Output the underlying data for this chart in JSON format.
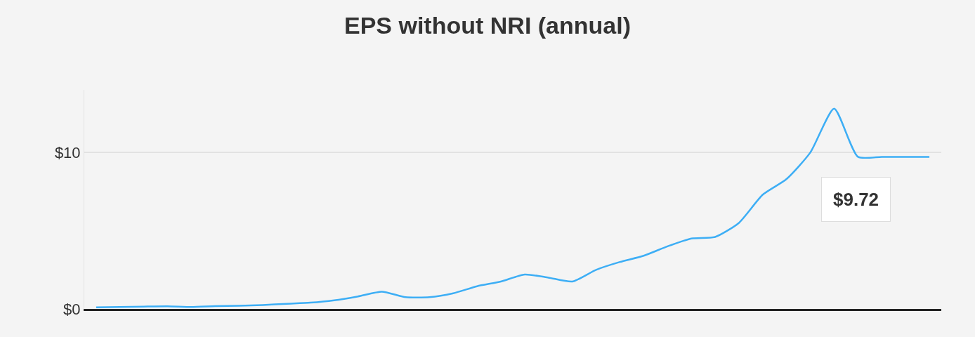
{
  "chart_data": {
    "type": "line",
    "title": "EPS without NRI (annual)",
    "categories": [
      null,
      null,
      null,
      null,
      null,
      null,
      null,
      null,
      null,
      null,
      null,
      null,
      null,
      null,
      null,
      null,
      null,
      null,
      null,
      null,
      null,
      null,
      null,
      null,
      null,
      null,
      null,
      null,
      null,
      null,
      null,
      null,
      null,
      null,
      null,
      null
    ],
    "series": [
      {
        "color": "#3daef5",
        "values": [
          0.1,
          0.12,
          0.15,
          0.17,
          0.12,
          0.18,
          0.2,
          0.25,
          0.33,
          0.4,
          0.55,
          0.8,
          1.1,
          0.75,
          0.75,
          1.0,
          1.45,
          1.75,
          2.2,
          2.0,
          1.75,
          2.5,
          3.0,
          3.4,
          4.0,
          4.5,
          4.6,
          5.5,
          7.3,
          8.3,
          10.0,
          12.8,
          9.72,
          9.72,
          9.72,
          9.72
        ]
      }
    ],
    "ylim": [
      0,
      14
    ],
    "yticks": [
      {
        "value": 0,
        "label": "$0"
      },
      {
        "value": 10,
        "label": "$10"
      }
    ],
    "grid": "y",
    "marker": "none",
    "line_style": "solid",
    "annotations": [
      "$9.72"
    ]
  }
}
